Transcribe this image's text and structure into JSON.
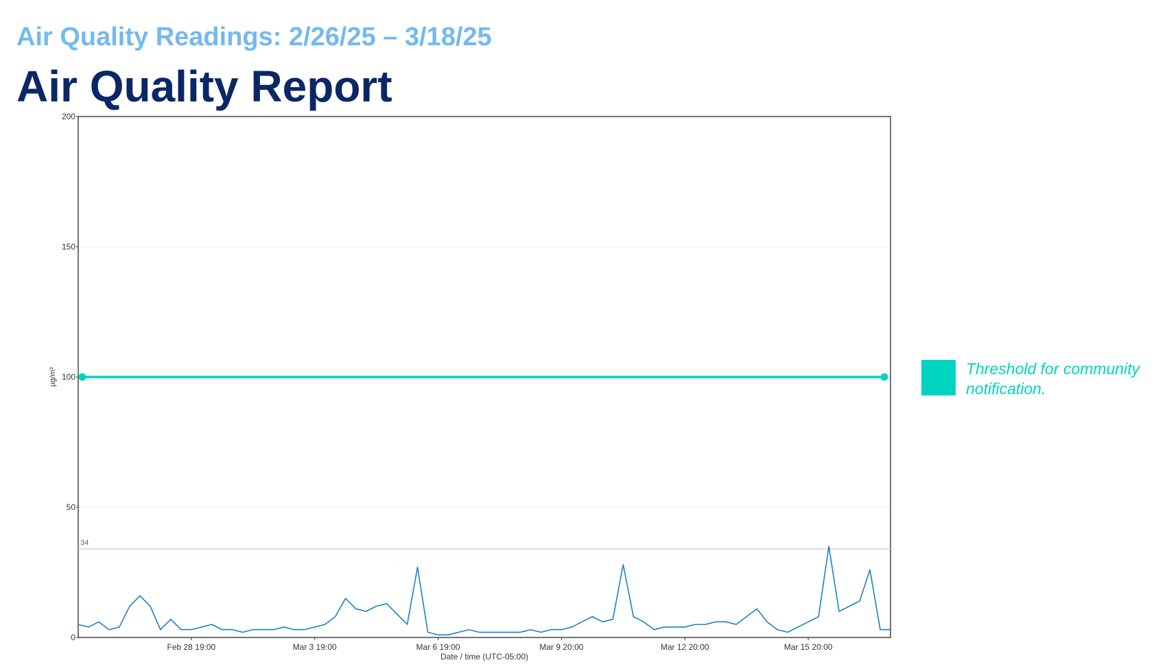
{
  "chart_data": {
    "type": "line",
    "subtitle": "Air Quality Readings: 2/26/25 – 3/18/25",
    "title": "Air Quality Report",
    "y_label": "µg/m³",
    "x_label": "Date / time (UTC-05:00)",
    "categories": [
      null,
      null,
      null,
      null,
      null,
      null,
      null,
      null,
      null,
      null,
      null,
      "Feb 28 19:00",
      null,
      null,
      null,
      null,
      null,
      null,
      null,
      null,
      null,
      null,
      null,
      "Mar 3 19:00",
      null,
      null,
      null,
      null,
      null,
      null,
      null,
      null,
      null,
      null,
      null,
      "Mar 6 19:00",
      null,
      null,
      null,
      null,
      null,
      null,
      null,
      null,
      null,
      null,
      null,
      "Mar 9 20:00",
      null,
      null,
      null,
      null,
      null,
      null,
      null,
      null,
      null,
      null,
      null,
      "Mar 12 20:00",
      null,
      null,
      null,
      null,
      null,
      null,
      null,
      null,
      null,
      null,
      null,
      "Mar 15 20:00",
      null,
      null,
      null,
      null,
      null,
      null,
      null,
      null
    ],
    "series": [
      {
        "color": "#1a80c4",
        "values": [
          5,
          4,
          6,
          3,
          4,
          12,
          16,
          12,
          3,
          7,
          3,
          3,
          4,
          5,
          3,
          3,
          2,
          3,
          3,
          3,
          4,
          3,
          3,
          4,
          5,
          8,
          15,
          11,
          10,
          12,
          13,
          9,
          5,
          27,
          2,
          1,
          1,
          2,
          3,
          2,
          2,
          2,
          2,
          2,
          3,
          2,
          3,
          3,
          4,
          6,
          8,
          6,
          7,
          28,
          8,
          6,
          3,
          4,
          4,
          4,
          5,
          5,
          6,
          6,
          5,
          8,
          11,
          6,
          3,
          2,
          4,
          6,
          8,
          35,
          10,
          12,
          14,
          26,
          3,
          3
        ]
      }
    ],
    "threshold": {
      "value": 100,
      "label": "Threshold for community notification.",
      "color": "#00d4c0"
    },
    "reference_line": 34,
    "ylim": [
      0,
      200
    ],
    "yticks": [
      0,
      50,
      100,
      150,
      200
    ],
    "grid": true
  }
}
